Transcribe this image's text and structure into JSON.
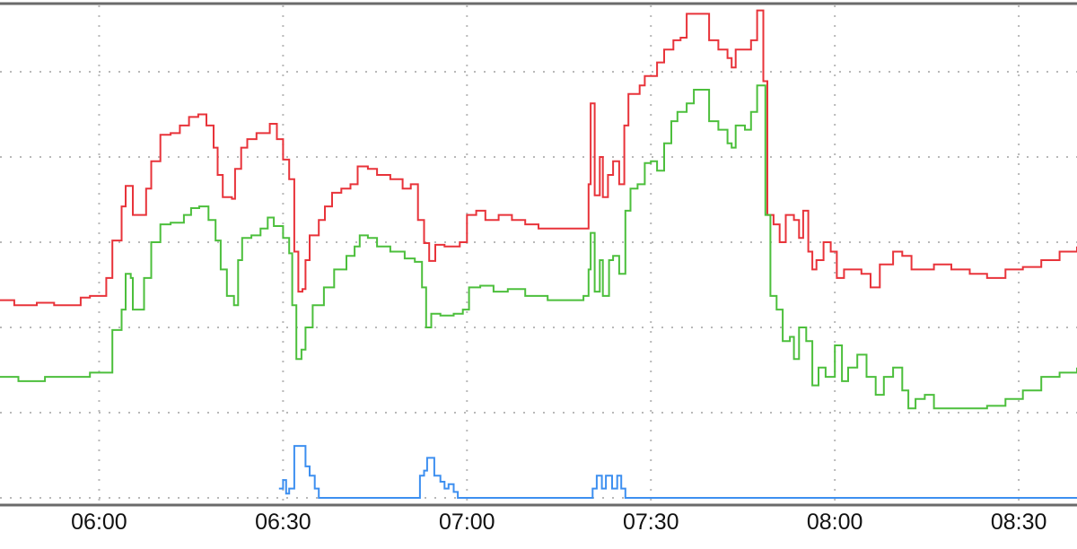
{
  "chart_data": {
    "type": "line",
    "title": "",
    "xlabel": "",
    "ylabel": "",
    "x_type": "time",
    "xlim": [
      "05:43:50",
      "08:39:30"
    ],
    "ylim": [
      0,
      5.79
    ],
    "y_tick_labels_visible": false,
    "yticks": [
      0,
      1,
      2,
      3,
      4,
      5
    ],
    "xticks": [
      "06:00",
      "06:30",
      "07:00",
      "07:30",
      "08:00",
      "08:30"
    ],
    "grid": true,
    "grid_style": "dotted",
    "legend": "none",
    "step_lines": true,
    "series": [
      {
        "color": "#e8333a",
        "points": [
          [
            "05:43:50",
            2.32
          ],
          [
            "05:46:10",
            2.26
          ],
          [
            "05:49:50",
            2.29
          ],
          [
            "05:52:40",
            2.26
          ],
          [
            "05:55:40",
            2.26
          ],
          [
            "05:57:00",
            2.35
          ],
          [
            "05:58:30",
            2.37
          ],
          [
            "06:00:40",
            2.37
          ],
          [
            "06:01:10",
            2.58
          ],
          [
            "06:02:10",
            3.02
          ],
          [
            "06:03:40",
            3.42
          ],
          [
            "06:04:20",
            3.66
          ],
          [
            "06:05:10",
            3.66
          ],
          [
            "06:05:30",
            3.32
          ],
          [
            "06:07:00",
            3.32
          ],
          [
            "06:07:40",
            3.63
          ],
          [
            "06:08:30",
            3.95
          ],
          [
            "06:10:00",
            4.26
          ],
          [
            "06:11:40",
            4.28
          ],
          [
            "06:13:10",
            4.37
          ],
          [
            "06:14:40",
            4.47
          ],
          [
            "06:16:10",
            4.5
          ],
          [
            "06:17:30",
            4.37
          ],
          [
            "06:18:40",
            4.11
          ],
          [
            "06:19:20",
            3.79
          ],
          [
            "06:20:10",
            3.53
          ],
          [
            "06:21:40",
            3.51
          ],
          [
            "06:22:10",
            3.86
          ],
          [
            "06:23:10",
            4.11
          ],
          [
            "06:24:10",
            4.21
          ],
          [
            "06:25:40",
            4.28
          ],
          [
            "06:27:50",
            4.39
          ],
          [
            "06:29:00",
            4.21
          ],
          [
            "06:30:00",
            3.97
          ],
          [
            "06:31:00",
            3.74
          ],
          [
            "06:31:50",
            2.89
          ],
          [
            "06:32:30",
            2.42
          ],
          [
            "06:33:10",
            2.45
          ],
          [
            "06:33:40",
            2.79
          ],
          [
            "06:34:20",
            3.08
          ],
          [
            "06:35:50",
            3.26
          ],
          [
            "06:36:50",
            3.42
          ],
          [
            "06:38:00",
            3.58
          ],
          [
            "06:39:30",
            3.63
          ],
          [
            "06:41:00",
            3.68
          ],
          [
            "06:42:10",
            3.89
          ],
          [
            "06:43:50",
            3.86
          ],
          [
            "06:45:20",
            3.79
          ],
          [
            "06:47:30",
            3.74
          ],
          [
            "06:49:30",
            3.63
          ],
          [
            "06:50:50",
            3.68
          ],
          [
            "06:52:00",
            3.26
          ],
          [
            "06:53:00",
            2.99
          ],
          [
            "06:53:50",
            2.78
          ],
          [
            "06:54:50",
            2.97
          ],
          [
            "06:56:20",
            2.95
          ],
          [
            "06:58:50",
            3.0
          ],
          [
            "07:00:00",
            3.32
          ],
          [
            "07:01:30",
            3.37
          ],
          [
            "07:03:00",
            3.26
          ],
          [
            "07:05:10",
            3.32
          ],
          [
            "07:07:20",
            3.26
          ],
          [
            "07:09:30",
            3.21
          ],
          [
            "07:11:40",
            3.16
          ],
          [
            "07:17:30",
            3.16
          ],
          [
            "07:19:00",
            3.16
          ],
          [
            "07:19:50",
            3.68
          ],
          [
            "07:20:10",
            4.63
          ],
          [
            "07:20:50",
            3.55
          ],
          [
            "07:21:40",
            4.0
          ],
          [
            "07:22:10",
            3.53
          ],
          [
            "07:23:00",
            3.79
          ],
          [
            "07:23:50",
            3.95
          ],
          [
            "07:24:50",
            3.68
          ],
          [
            "07:25:40",
            4.37
          ],
          [
            "07:26:20",
            4.74
          ],
          [
            "07:28:10",
            4.84
          ],
          [
            "07:29:00",
            4.95
          ],
          [
            "07:30:00",
            4.95
          ],
          [
            "07:31:00",
            5.11
          ],
          [
            "07:32:10",
            5.26
          ],
          [
            "07:33:40",
            5.37
          ],
          [
            "07:34:50",
            5.4
          ],
          [
            "07:35:50",
            5.68
          ],
          [
            "07:38:50",
            5.68
          ],
          [
            "07:39:30",
            5.37
          ],
          [
            "07:41:00",
            5.26
          ],
          [
            "07:42:30",
            5.16
          ],
          [
            "07:43:10",
            5.05
          ],
          [
            "07:43:50",
            5.26
          ],
          [
            "07:45:20",
            5.26
          ],
          [
            "07:46:20",
            5.37
          ],
          [
            "07:47:20",
            5.72
          ],
          [
            "07:48:00",
            5.72
          ],
          [
            "07:48:20",
            4.89
          ],
          [
            "07:49:00",
            3.32
          ],
          [
            "07:50:00",
            3.21
          ],
          [
            "07:51:00",
            3.0
          ],
          [
            "07:52:00",
            3.32
          ],
          [
            "07:53:20",
            3.26
          ],
          [
            "07:54:10",
            3.05
          ],
          [
            "07:54:50",
            3.37
          ],
          [
            "07:55:40",
            2.89
          ],
          [
            "07:56:20",
            2.68
          ],
          [
            "07:57:00",
            2.79
          ],
          [
            "07:58:10",
            3.0
          ],
          [
            "07:59:20",
            2.89
          ],
          [
            "08:00:20",
            2.58
          ],
          [
            "08:01:30",
            2.68
          ],
          [
            "08:03:00",
            2.68
          ],
          [
            "08:04:20",
            2.63
          ],
          [
            "08:05:50",
            2.47
          ],
          [
            "08:07:20",
            2.74
          ],
          [
            "08:08:50",
            2.74
          ],
          [
            "08:09:30",
            2.89
          ],
          [
            "08:11:00",
            2.84
          ],
          [
            "08:12:30",
            2.68
          ],
          [
            "08:13:50",
            2.68
          ],
          [
            "08:16:10",
            2.74
          ],
          [
            "08:19:00",
            2.68
          ],
          [
            "08:22:00",
            2.63
          ],
          [
            "08:24:50",
            2.58
          ],
          [
            "08:27:50",
            2.68
          ],
          [
            "08:30:40",
            2.71
          ],
          [
            "08:33:40",
            2.79
          ],
          [
            "08:36:40",
            2.89
          ],
          [
            "08:39:30",
            2.95
          ]
        ]
      },
      {
        "color": "#4cbf3c",
        "points": [
          [
            "05:43:50",
            1.42
          ],
          [
            "05:46:50",
            1.37
          ],
          [
            "05:51:10",
            1.42
          ],
          [
            "05:55:40",
            1.42
          ],
          [
            "05:58:30",
            1.47
          ],
          [
            "06:01:10",
            1.47
          ],
          [
            "06:02:10",
            1.97
          ],
          [
            "06:03:40",
            2.21
          ],
          [
            "06:04:20",
            2.63
          ],
          [
            "06:05:10",
            2.58
          ],
          [
            "06:05:30",
            2.21
          ],
          [
            "06:06:40",
            2.21
          ],
          [
            "06:07:20",
            2.58
          ],
          [
            "06:08:30",
            3.0
          ],
          [
            "06:10:00",
            3.21
          ],
          [
            "06:11:40",
            3.23
          ],
          [
            "06:13:50",
            3.32
          ],
          [
            "06:15:00",
            3.4
          ],
          [
            "06:16:20",
            3.42
          ],
          [
            "06:17:50",
            3.26
          ],
          [
            "06:19:00",
            3.02
          ],
          [
            "06:19:50",
            2.68
          ],
          [
            "06:20:50",
            2.37
          ],
          [
            "06:22:00",
            2.26
          ],
          [
            "06:22:40",
            2.79
          ],
          [
            "06:23:20",
            3.05
          ],
          [
            "06:24:50",
            3.08
          ],
          [
            "06:26:20",
            3.16
          ],
          [
            "06:27:30",
            3.29
          ],
          [
            "06:28:30",
            3.19
          ],
          [
            "06:30:00",
            3.05
          ],
          [
            "06:31:00",
            2.87
          ],
          [
            "06:31:30",
            2.26
          ],
          [
            "06:32:10",
            1.63
          ],
          [
            "06:33:00",
            1.74
          ],
          [
            "06:33:40",
            2.0
          ],
          [
            "06:34:50",
            2.26
          ],
          [
            "06:36:40",
            2.47
          ],
          [
            "06:38:20",
            2.68
          ],
          [
            "06:40:20",
            2.84
          ],
          [
            "06:41:40",
            2.95
          ],
          [
            "06:42:30",
            3.08
          ],
          [
            "06:43:50",
            3.05
          ],
          [
            "06:45:20",
            2.95
          ],
          [
            "06:47:30",
            2.89
          ],
          [
            "06:49:50",
            2.81
          ],
          [
            "06:51:30",
            2.77
          ],
          [
            "06:52:40",
            2.47
          ],
          [
            "06:53:20",
            2.0
          ],
          [
            "06:54:10",
            2.16
          ],
          [
            "06:55:40",
            2.14
          ],
          [
            "06:57:50",
            2.16
          ],
          [
            "06:59:20",
            2.21
          ],
          [
            "07:00:20",
            2.47
          ],
          [
            "07:02:10",
            2.49
          ],
          [
            "07:04:20",
            2.42
          ],
          [
            "07:06:40",
            2.45
          ],
          [
            "07:09:30",
            2.37
          ],
          [
            "07:13:10",
            2.32
          ],
          [
            "07:17:30",
            2.32
          ],
          [
            "07:19:00",
            2.37
          ],
          [
            "07:19:50",
            2.68
          ],
          [
            "07:20:10",
            3.11
          ],
          [
            "07:20:50",
            2.42
          ],
          [
            "07:21:40",
            2.79
          ],
          [
            "07:22:10",
            2.37
          ],
          [
            "07:23:10",
            2.79
          ],
          [
            "07:23:50",
            2.84
          ],
          [
            "07:24:50",
            2.63
          ],
          [
            "07:25:50",
            3.37
          ],
          [
            "07:26:40",
            3.63
          ],
          [
            "07:27:50",
            3.68
          ],
          [
            "07:29:00",
            3.93
          ],
          [
            "07:30:00",
            3.95
          ],
          [
            "07:31:00",
            3.84
          ],
          [
            "07:32:10",
            4.16
          ],
          [
            "07:33:20",
            4.42
          ],
          [
            "07:34:20",
            4.53
          ],
          [
            "07:35:50",
            4.63
          ],
          [
            "07:37:00",
            4.79
          ],
          [
            "07:38:50",
            4.79
          ],
          [
            "07:39:30",
            4.42
          ],
          [
            "07:41:00",
            4.32
          ],
          [
            "07:42:30",
            4.16
          ],
          [
            "07:43:10",
            4.11
          ],
          [
            "07:43:50",
            4.37
          ],
          [
            "07:45:20",
            4.32
          ],
          [
            "07:46:20",
            4.53
          ],
          [
            "07:47:20",
            4.84
          ],
          [
            "07:48:00",
            4.84
          ],
          [
            "07:48:40",
            3.32
          ],
          [
            "07:49:30",
            2.37
          ],
          [
            "07:50:30",
            2.21
          ],
          [
            "07:51:30",
            1.84
          ],
          [
            "07:52:40",
            1.89
          ],
          [
            "07:53:20",
            1.63
          ],
          [
            "07:54:10",
            2.0
          ],
          [
            "07:55:20",
            1.84
          ],
          [
            "07:56:20",
            1.32
          ],
          [
            "07:57:20",
            1.53
          ],
          [
            "07:58:30",
            1.42
          ],
          [
            "08:00:00",
            1.79
          ],
          [
            "08:01:10",
            1.37
          ],
          [
            "08:02:10",
            1.53
          ],
          [
            "08:03:40",
            1.68
          ],
          [
            "08:05:10",
            1.42
          ],
          [
            "08:06:40",
            1.21
          ],
          [
            "08:08:00",
            1.42
          ],
          [
            "08:09:30",
            1.53
          ],
          [
            "08:11:00",
            1.26
          ],
          [
            "08:12:00",
            1.05
          ],
          [
            "08:13:10",
            1.16
          ],
          [
            "08:14:40",
            1.21
          ],
          [
            "08:16:10",
            1.05
          ],
          [
            "08:19:00",
            1.05
          ],
          [
            "08:22:00",
            1.05
          ],
          [
            "08:24:50",
            1.08
          ],
          [
            "08:27:50",
            1.16
          ],
          [
            "08:30:40",
            1.26
          ],
          [
            "08:33:40",
            1.42
          ],
          [
            "08:36:40",
            1.47
          ],
          [
            "08:39:30",
            1.53
          ]
        ]
      },
      {
        "color": "#3d8ff0",
        "points": [
          [
            "06:29:20",
            0.11
          ],
          [
            "06:30:00",
            0.21
          ],
          [
            "06:30:30",
            0.05
          ],
          [
            "06:31:00",
            0.11
          ],
          [
            "06:31:50",
            0.61
          ],
          [
            "06:33:00",
            0.61
          ],
          [
            "06:33:40",
            0.37
          ],
          [
            "06:34:20",
            0.26
          ],
          [
            "06:35:10",
            0.11
          ],
          [
            "06:35:50",
            0
          ],
          [
            "06:52:00",
            0
          ],
          [
            "06:52:20",
            0.26
          ],
          [
            "06:53:00",
            0.32
          ],
          [
            "06:53:30",
            0.47
          ],
          [
            "06:54:10",
            0.47
          ],
          [
            "06:54:40",
            0.26
          ],
          [
            "06:55:40",
            0.19
          ],
          [
            "06:56:20",
            0.11
          ],
          [
            "06:57:00",
            0.16
          ],
          [
            "06:57:50",
            0.07
          ],
          [
            "06:58:30",
            0
          ],
          [
            "07:19:50",
            0
          ],
          [
            "07:20:30",
            0.11
          ],
          [
            "07:21:10",
            0.26
          ],
          [
            "07:22:00",
            0.11
          ],
          [
            "07:22:40",
            0.26
          ],
          [
            "07:23:40",
            0.11
          ],
          [
            "07:24:30",
            0.26
          ],
          [
            "07:25:10",
            0.11
          ],
          [
            "07:25:50",
            0
          ],
          [
            "08:39:30",
            0
          ]
        ]
      }
    ]
  }
}
